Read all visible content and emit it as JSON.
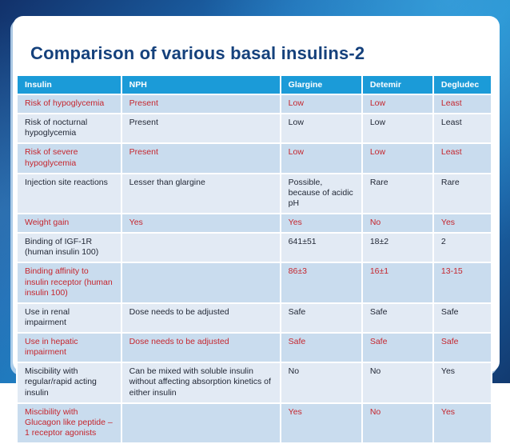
{
  "slide": {
    "title": "Comparison of various basal insulins-2"
  },
  "colors": {
    "header_bg": "#1b9bd8",
    "row_red_bg": "#c9dcee",
    "row_plain_bg": "#e2eaf4",
    "red_text": "#c5262e",
    "dark_text": "#1f2533",
    "title_text": "#15417c",
    "frame_blue_bright": "#1f8ccb",
    "frame_blue_dark": "#12316a"
  },
  "table": {
    "columns": [
      "Insulin",
      "NPH",
      "Glargine",
      "Detemir",
      "Degludec"
    ],
    "column_widths_pct": [
      22,
      33.5,
      17.2,
      15,
      12.3
    ],
    "rows": [
      {
        "variant": "red",
        "cells": [
          "Risk of hypoglycemia",
          "Present",
          "Low",
          "Low",
          "Least"
        ]
      },
      {
        "variant": "plain",
        "cells": [
          "Risk of nocturnal hypoglycemia",
          "Present",
          "Low",
          "Low",
          "Least"
        ]
      },
      {
        "variant": "red",
        "cells": [
          "Risk of severe hypoglycemia",
          "Present",
          "Low",
          "Low",
          "Least"
        ]
      },
      {
        "variant": "plain",
        "cells": [
          "Injection site reactions",
          "Lesser than glargine",
          "Possible, because of acidic pH",
          "Rare",
          "Rare"
        ]
      },
      {
        "variant": "red",
        "cells": [
          "Weight gain",
          "Yes",
          "Yes",
          "No",
          "Yes"
        ]
      },
      {
        "variant": "plain",
        "cells": [
          "Binding of IGF-1R (human insulin 100)",
          "",
          "641±51",
          "18±2",
          "2"
        ]
      },
      {
        "variant": "red",
        "cells": [
          "Binding affinity to insulin receptor (human insulin 100)",
          "",
          "86±3",
          "16±1",
          "13-15"
        ]
      },
      {
        "variant": "plain",
        "cells": [
          "Use in renal impairment",
          "Dose needs to be adjusted",
          "Safe",
          "Safe",
          "Safe"
        ]
      },
      {
        "variant": "red",
        "cells": [
          "Use in hepatic impairment",
          "Dose needs to be adjusted",
          "Safe",
          "Safe",
          "Safe"
        ]
      },
      {
        "variant": "plain",
        "cells": [
          "Miscibility with regular/rapid acting insulin",
          "Can be mixed with soluble insulin without affecting absorption kinetics of either insulin",
          "No",
          "No",
          "Yes"
        ]
      },
      {
        "variant": "red",
        "cells": [
          "Miscibility with Glucagon like peptide – 1 receptor agonists",
          "",
          "Yes",
          "No",
          "Yes"
        ]
      }
    ]
  }
}
